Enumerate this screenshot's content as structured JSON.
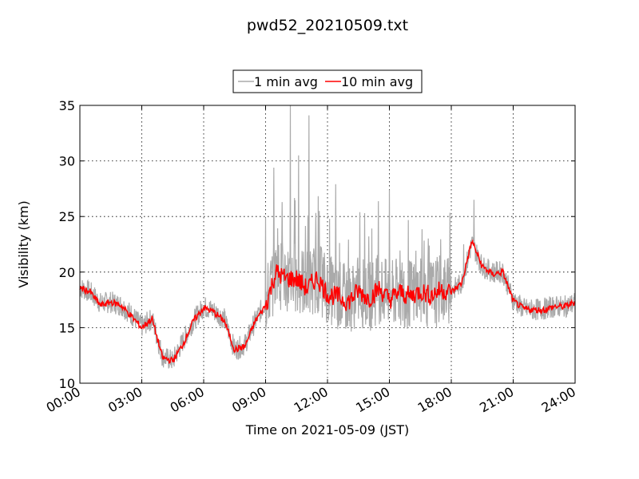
{
  "chart_data": {
    "type": "line",
    "title": "pwd52_20210509.txt",
    "xlabel": "Time on 2021-05-09 (JST)",
    "ylabel": "Visibility (km)",
    "xlim": [
      "00:00",
      "24:00"
    ],
    "ylim": [
      10,
      35
    ],
    "x_ticks": [
      "00:00",
      "03:00",
      "06:00",
      "09:00",
      "12:00",
      "15:00",
      "18:00",
      "21:00",
      "24:00"
    ],
    "y_ticks": [
      "10",
      "15",
      "20",
      "25",
      "30",
      "35"
    ],
    "grid": true,
    "legend_position": "top-center",
    "series": [
      {
        "name": "1 min avg",
        "color": "#aaaaaa",
        "x_hours": [
          0,
          0.5,
          1,
          1.5,
          2,
          2.5,
          3,
          3.5,
          4,
          4.5,
          5,
          5.5,
          6,
          6.5,
          7,
          7.5,
          8,
          8.5,
          9,
          9.5,
          10,
          10.5,
          11,
          11.5,
          12,
          12.5,
          13,
          13.5,
          14,
          14.5,
          15,
          15.5,
          16,
          16.5,
          17,
          17.5,
          18,
          18.5,
          19,
          19.5,
          20,
          20.5,
          21,
          21.5,
          22,
          22.5,
          23,
          23.5,
          24
        ],
        "values": [
          18.6,
          18.2,
          17.2,
          17.3,
          17.0,
          16.2,
          15.1,
          15.8,
          12.4,
          12.0,
          13.8,
          15.6,
          16.9,
          16.5,
          15.8,
          13.0,
          13.5,
          15.6,
          17.3,
          20.0,
          19.5,
          19.5,
          19.0,
          19.5,
          18.5,
          18.0,
          17.5,
          18.3,
          17.8,
          18.5,
          17.8,
          18.2,
          18.0,
          18.2,
          18.0,
          18.4,
          18.3,
          19.0,
          22.6,
          20.5,
          20.0,
          20.0,
          17.5,
          16.7,
          16.6,
          16.7,
          16.9,
          16.9,
          17.2
        ],
        "spikes": [
          {
            "time": "09:00",
            "value": 24.9
          },
          {
            "time": "09:24",
            "value": 29.4
          },
          {
            "time": "09:48",
            "value": 26.3
          },
          {
            "time": "10:12",
            "value": 35.0
          },
          {
            "time": "10:36",
            "value": 30.5
          },
          {
            "time": "11:06",
            "value": 34.1
          },
          {
            "time": "11:36",
            "value": 25.5
          },
          {
            "time": "12:24",
            "value": 27.9
          },
          {
            "time": "13:48",
            "value": 25.3
          },
          {
            "time": "15:00",
            "value": 27.4
          },
          {
            "time": "18:36",
            "value": 22.5
          },
          {
            "time": "19:06",
            "value": 26.5
          }
        ]
      },
      {
        "name": "10 min avg",
        "color": "#ff0000",
        "x_hours": [
          0,
          0.5,
          1,
          1.5,
          2,
          2.5,
          3,
          3.5,
          4,
          4.5,
          5,
          5.5,
          6,
          6.5,
          7,
          7.5,
          8,
          8.5,
          9,
          9.5,
          10,
          10.5,
          11,
          11.5,
          12,
          12.5,
          13,
          13.5,
          14,
          14.5,
          15,
          15.5,
          16,
          16.5,
          17,
          17.5,
          18,
          18.5,
          19,
          19.5,
          20,
          20.5,
          21,
          21.5,
          22,
          22.5,
          23,
          23.5,
          24
        ],
        "values": [
          18.6,
          18.2,
          17.0,
          17.3,
          17.0,
          16.0,
          15.0,
          15.8,
          12.3,
          12.0,
          13.5,
          15.6,
          16.8,
          16.4,
          15.6,
          13.0,
          13.3,
          15.6,
          17.0,
          20.0,
          19.4,
          19.4,
          18.5,
          19.5,
          18.0,
          17.8,
          17.3,
          18.3,
          17.6,
          18.5,
          17.5,
          18.2,
          17.8,
          18.3,
          17.9,
          18.4,
          18.2,
          19.0,
          22.8,
          20.5,
          19.8,
          20.0,
          17.4,
          16.7,
          16.6,
          16.6,
          16.9,
          16.9,
          17.3
        ]
      }
    ]
  }
}
